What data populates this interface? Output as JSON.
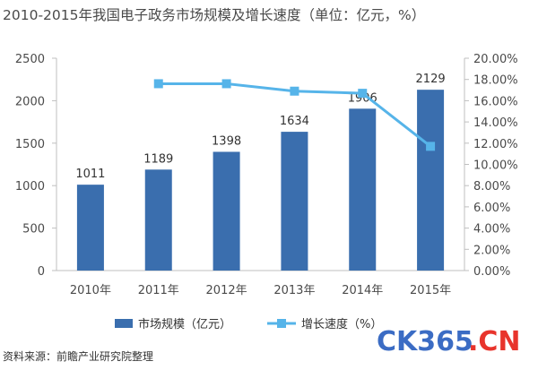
{
  "chart_data": {
    "type": "bar",
    "title": "2010-2015年我国电子政务市场规模及增长速度（单位：亿元，%）",
    "categories": [
      "2010年",
      "2011年",
      "2012年",
      "2013年",
      "2014年",
      "2015年"
    ],
    "series": [
      {
        "name": "市场规模（亿元）",
        "type": "bar",
        "axis": "left",
        "values": [
          1011,
          1189,
          1398,
          1634,
          1906,
          2129
        ],
        "color": "#3a6eae"
      },
      {
        "name": "增长速度（%）",
        "type": "line",
        "axis": "right",
        "values": [
          null,
          17.6,
          17.6,
          16.9,
          16.7,
          11.7
        ],
        "color": "#56b4e9"
      }
    ],
    "ylim_left": [
      0,
      2500
    ],
    "yticks_left": [
      "0",
      "500",
      "1000",
      "1500",
      "2000",
      "2500"
    ],
    "ylim_right": [
      0,
      20
    ],
    "yticks_right": [
      "0.00%",
      "2.00%",
      "4.00%",
      "6.00%",
      "8.00%",
      "10.00%",
      "12.00%",
      "14.00%",
      "16.00%",
      "18.00%",
      "20.00%"
    ],
    "data_labels": [
      "1011",
      "1189",
      "1398",
      "1634",
      "1906",
      "2129"
    ],
    "grid": false,
    "legend": "bottom"
  },
  "source_note": "资料来源：前瞻产业研究院整理",
  "watermark": {
    "part1": "CK365",
    "part2": ".CN"
  }
}
